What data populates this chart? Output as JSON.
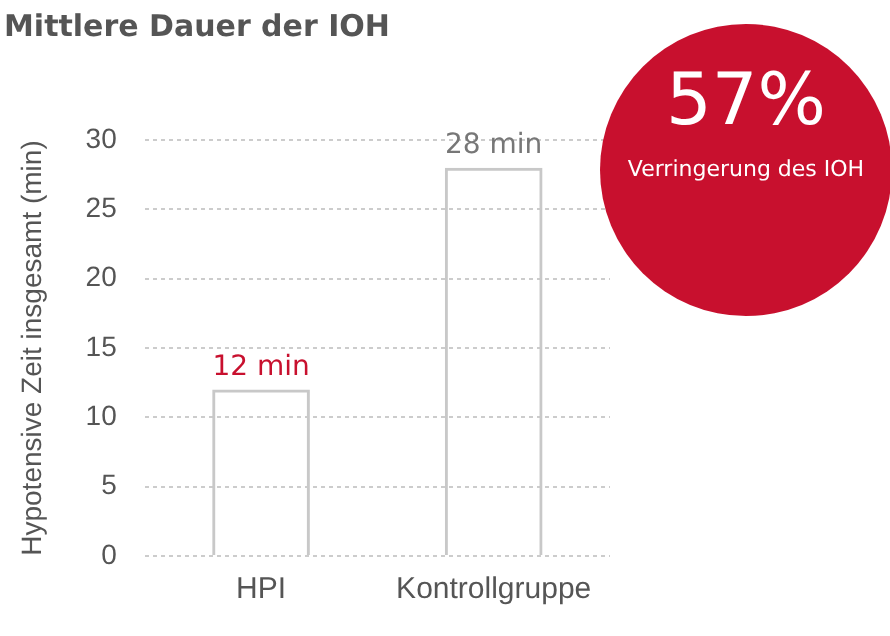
{
  "chart_data": {
    "type": "bar",
    "title": "Mittlere Dauer der IOH",
    "ylabel": "Hypotensive Zeit insgesamt (min)",
    "categories": [
      "HPI",
      "Kontrollgruppe"
    ],
    "values": [
      12,
      28
    ],
    "value_labels": [
      "12 min",
      "28 min"
    ],
    "color": "#c8c8c8",
    "ylim": [
      0,
      30
    ],
    "yticks": [
      0,
      5,
      10,
      15,
      20,
      25,
      30
    ],
    "grid": "y",
    "annotations": [
      "57%",
      "Verringerung des IOH"
    ]
  }
}
